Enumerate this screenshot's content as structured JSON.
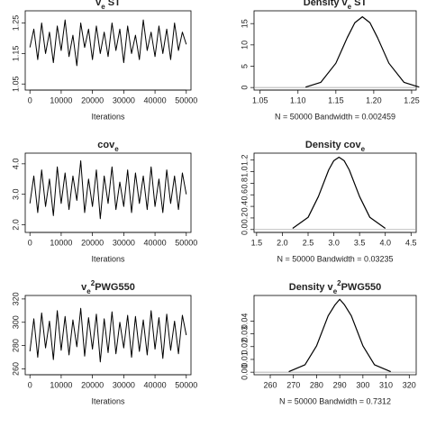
{
  "chart_data": [
    {
      "type": "line",
      "title_parts": [
        {
          "text": "v"
        },
        {
          "text": "e",
          "sub": true
        },
        {
          "text": " ST"
        }
      ],
      "x_label": "Iterations",
      "color": "#000000",
      "x": [
        0,
        1250,
        2500,
        3750,
        5000,
        6250,
        7500,
        8750,
        10000,
        11250,
        12500,
        13750,
        15000,
        16250,
        17500,
        18750,
        20000,
        21250,
        22500,
        23750,
        25000,
        26250,
        27500,
        28750,
        30000,
        31250,
        32500,
        33750,
        35000,
        36250,
        37500,
        38750,
        40000,
        41250,
        42500,
        43750,
        45000,
        46250,
        47500,
        48750,
        50000
      ],
      "values": [
        1.17,
        1.23,
        1.13,
        1.25,
        1.15,
        1.22,
        1.12,
        1.24,
        1.16,
        1.26,
        1.14,
        1.21,
        1.11,
        1.25,
        1.17,
        1.23,
        1.13,
        1.24,
        1.15,
        1.22,
        1.14,
        1.25,
        1.16,
        1.23,
        1.12,
        1.24,
        1.15,
        1.21,
        1.13,
        1.26,
        1.16,
        1.22,
        1.14,
        1.24,
        1.15,
        1.23,
        1.13,
        1.25,
        1.16,
        1.22,
        1.18
      ],
      "xlim": [
        -1500,
        51500
      ],
      "xticks": [
        0,
        10000,
        20000,
        30000,
        40000,
        50000
      ],
      "ylim": [
        1.03,
        1.29
      ],
      "yticks": [
        1.05,
        1.15,
        1.25
      ]
    },
    {
      "type": "line",
      "title_parts": [
        {
          "text": "Density v"
        },
        {
          "text": "e",
          "sub": true
        },
        {
          "text": " ST"
        }
      ],
      "x_label": "N = 50000   Bandwidth = 0.002459",
      "color": "#000000",
      "x": [
        1.11,
        1.13,
        1.15,
        1.165,
        1.175,
        1.185,
        1.195,
        1.205,
        1.22,
        1.24,
        1.26
      ],
      "values": [
        0.1,
        1.2,
        5.7,
        11.7,
        15.2,
        16.6,
        15.2,
        11.7,
        5.7,
        1.2,
        0.1
      ],
      "xlim": [
        1.042,
        1.256
      ],
      "xticks": [
        1.05,
        {
          "value": 1.1,
          "label": "1.10"
        },
        1.15,
        {
          "value": 1.2,
          "label": "1.20"
        },
        1.25
      ],
      "ylim": [
        -0.6,
        18
      ],
      "yticks": [
        0,
        5,
        10,
        15
      ],
      "zero_line": true
    },
    {
      "type": "line",
      "title_parts": [
        {
          "text": "cov"
        },
        {
          "text": "e",
          "sub": true
        }
      ],
      "x_label": "Iterations",
      "color": "#000000",
      "x": [
        0,
        1250,
        2500,
        3750,
        5000,
        6250,
        7500,
        8750,
        10000,
        11250,
        12500,
        13750,
        15000,
        16250,
        17500,
        18750,
        20000,
        21250,
        22500,
        23750,
        25000,
        26250,
        27500,
        28750,
        30000,
        31250,
        32500,
        33750,
        35000,
        36250,
        37500,
        38750,
        40000,
        41250,
        42500,
        43750,
        45000,
        46250,
        47500,
        48750,
        50000
      ],
      "values": [
        2.7,
        3.6,
        2.4,
        3.8,
        2.6,
        3.5,
        2.3,
        3.9,
        2.7,
        3.7,
        2.5,
        3.6,
        2.8,
        4.1,
        2.4,
        3.5,
        2.6,
        3.8,
        2.2,
        3.6,
        2.7,
        3.9,
        2.5,
        3.4,
        2.6,
        3.8,
        2.4,
        3.7,
        2.7,
        3.6,
        2.5,
        3.9,
        2.6,
        3.5,
        2.4,
        3.8,
        2.7,
        3.6,
        2.5,
        3.7,
        3.0
      ],
      "xlim": [
        -1500,
        51500
      ],
      "xticks": [
        0,
        10000,
        20000,
        30000,
        40000,
        50000
      ],
      "ylim": [
        1.75,
        4.35
      ],
      "yticks": [
        {
          "value": 2,
          "label": "2.0"
        },
        {
          "value": 3,
          "label": "3.0"
        },
        {
          "value": 4,
          "label": "4.0"
        }
      ]
    },
    {
      "type": "line",
      "title_parts": [
        {
          "text": "Density cov"
        },
        {
          "text": "e",
          "sub": true
        }
      ],
      "x_label": "N = 50000   Bandwidth = 0.03235",
      "color": "#000000",
      "x": [
        2.2,
        2.5,
        2.7,
        2.9,
        3.0,
        3.1,
        3.2,
        3.3,
        3.5,
        3.7,
        4.0
      ],
      "values": [
        0.02,
        0.21,
        0.57,
        1.03,
        1.19,
        1.25,
        1.19,
        1.03,
        0.57,
        0.21,
        0.02
      ],
      "xlim": [
        1.45,
        4.6
      ],
      "xticks": [
        1.5,
        {
          "value": 2,
          "label": "2.0"
        },
        2.5,
        {
          "value": 3,
          "label": "3.0"
        },
        3.5,
        {
          "value": 4,
          "label": "4.0"
        },
        4.5
      ],
      "ylim": [
        -0.05,
        1.32
      ],
      "yticks": [
        {
          "value": 0,
          "label": "0.0"
        },
        0.2,
        0.4,
        0.6,
        0.8,
        {
          "value": 1,
          "label": "1.0"
        },
        1.2
      ],
      "zero_line": true
    },
    {
      "type": "line",
      "title_parts": [
        {
          "text": "v"
        },
        {
          "text": "e",
          "sub": true
        },
        {
          "text": "2",
          "sup": true
        },
        {
          "text": "PWG550"
        }
      ],
      "x_label": "Iterations",
      "color": "#000000",
      "x": [
        0,
        1250,
        2500,
        3750,
        5000,
        6250,
        7500,
        8750,
        10000,
        11250,
        12500,
        13750,
        15000,
        16250,
        17500,
        18750,
        20000,
        21250,
        22500,
        23750,
        25000,
        26250,
        27500,
        28750,
        30000,
        31250,
        32500,
        33750,
        35000,
        36250,
        37500,
        38750,
        40000,
        41250,
        42500,
        43750,
        45000,
        46250,
        47500,
        48750,
        50000
      ],
      "values": [
        275,
        303,
        270,
        308,
        278,
        301,
        268,
        310,
        276,
        305,
        272,
        302,
        279,
        312,
        271,
        304,
        277,
        307,
        266,
        303,
        274,
        309,
        273,
        300,
        278,
        306,
        270,
        305,
        275,
        302,
        272,
        310,
        277,
        304,
        269,
        307,
        276,
        301,
        273,
        306,
        289
      ],
      "xlim": [
        -1500,
        51500
      ],
      "xticks": [
        0,
        10000,
        20000,
        30000,
        40000,
        50000
      ],
      "ylim": [
        255,
        323
      ],
      "yticks": [
        260,
        280,
        300,
        320
      ]
    },
    {
      "type": "line",
      "title_parts": [
        {
          "text": "Density v"
        },
        {
          "text": "e",
          "sub": true
        },
        {
          "text": "2",
          "sup": true
        },
        {
          "text": "PWG550"
        }
      ],
      "x_label": "N = 50000   Bandwidth = 0.7312",
      "color": "#000000",
      "x": [
        268,
        275,
        280,
        285,
        288,
        290,
        292,
        295,
        300,
        305,
        312
      ],
      "values": [
        0.0004,
        0.0058,
        0.0206,
        0.0441,
        0.0528,
        0.057,
        0.0528,
        0.0441,
        0.0206,
        0.0058,
        0.0004
      ],
      "xlim": [
        253,
        323
      ],
      "xticks": [
        260,
        270,
        280,
        290,
        300,
        310,
        320
      ],
      "ylim": [
        -0.002,
        0.06
      ],
      "yticks": [
        {
          "value": 0,
          "label": "0.00"
        },
        {
          "value": 0.01,
          "label": "0.01"
        },
        {
          "value": 0.02,
          "label": "0.02"
        },
        {
          "value": 0.03,
          "label": "0.03"
        },
        {
          "value": 0.04,
          "label": "0.04"
        }
      ],
      "zero_line": true
    }
  ]
}
